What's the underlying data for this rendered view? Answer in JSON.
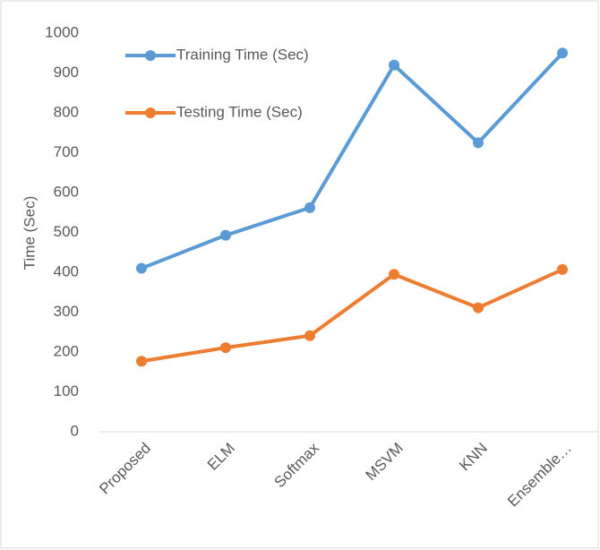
{
  "chart_data": {
    "type": "line",
    "y_label": "Time (Sec)",
    "categories": [
      "Proposed",
      "ELM",
      "Softmax",
      "MSVM",
      "KNN",
      "Ensemble…"
    ],
    "series": [
      {
        "name": "Training Time (Sec)",
        "color": "#5b9bd5",
        "values": [
          410,
          493,
          562,
          920,
          725,
          950
        ]
      },
      {
        "name": "Testing Time (Sec)",
        "color": "#ed7d31",
        "values": [
          177,
          211,
          241,
          395,
          311,
          407
        ]
      }
    ],
    "ylim": [
      0,
      1000
    ],
    "yticks": [
      0,
      100,
      200,
      300,
      400,
      500,
      600,
      700,
      800,
      900,
      1000
    ],
    "grid": false,
    "legend": "top-left"
  }
}
